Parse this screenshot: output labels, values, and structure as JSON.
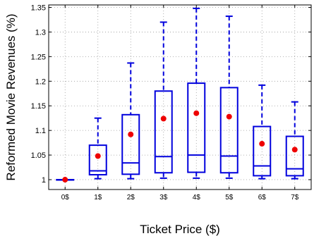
{
  "chart_data": {
    "type": "box",
    "xlabel": "Ticket Price ($)",
    "ylabel": "Reformed Movie Revenues (%)",
    "categories": [
      "0$",
      "1$",
      "2$",
      "3$",
      "4$",
      "5$",
      "6$",
      "7$"
    ],
    "ylim": [
      0.98,
      1.355
    ],
    "yticks": [
      1,
      1.05,
      1.1,
      1.15,
      1.2,
      1.25,
      1.3,
      1.35
    ],
    "ytick_labels": [
      "1",
      "1.05",
      "1.1",
      "1.15",
      "1.2",
      "1.25",
      "1.3",
      "1.35"
    ],
    "grid": true,
    "boxes": [
      {
        "category": "0$",
        "whisker_low": 1.0,
        "q1": 1.0,
        "median": 1.0,
        "q3": 1.0,
        "whisker_high": 1.0,
        "mean": 1.0
      },
      {
        "category": "1$",
        "whisker_low": 1.002,
        "q1": 1.01,
        "median": 1.018,
        "q3": 1.07,
        "whisker_high": 1.125,
        "mean": 1.048
      },
      {
        "category": "2$",
        "whisker_low": 1.002,
        "q1": 1.011,
        "median": 1.034,
        "q3": 1.132,
        "whisker_high": 1.237,
        "mean": 1.092
      },
      {
        "category": "3$",
        "whisker_low": 1.003,
        "q1": 1.014,
        "median": 1.047,
        "q3": 1.18,
        "whisker_high": 1.32,
        "mean": 1.124
      },
      {
        "category": "4$",
        "whisker_low": 1.003,
        "q1": 1.015,
        "median": 1.05,
        "q3": 1.196,
        "whisker_high": 1.348,
        "mean": 1.135
      },
      {
        "category": "5$",
        "whisker_low": 1.003,
        "q1": 1.014,
        "median": 1.048,
        "q3": 1.187,
        "whisker_high": 1.332,
        "mean": 1.128
      },
      {
        "category": "6$",
        "whisker_low": 1.002,
        "q1": 1.008,
        "median": 1.028,
        "q3": 1.108,
        "whisker_high": 1.192,
        "mean": 1.073
      },
      {
        "category": "7$",
        "whisker_low": 1.002,
        "q1": 1.008,
        "median": 1.022,
        "q3": 1.088,
        "whisker_high": 1.158,
        "mean": 1.061
      }
    ],
    "colors": {
      "box": "#0000dd",
      "mean_marker": "#ee0000",
      "grid": "#9a9a9a",
      "axis": "#000000",
      "text": "#000000"
    }
  }
}
